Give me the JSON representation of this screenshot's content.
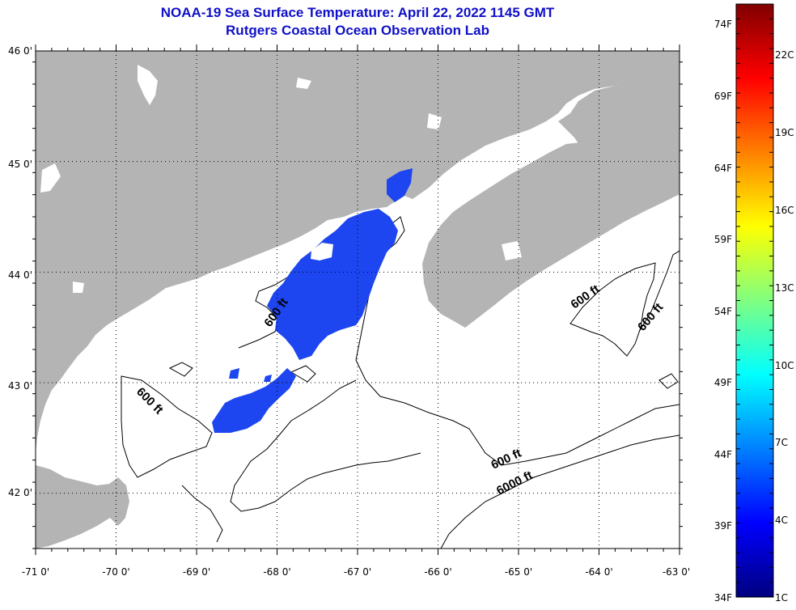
{
  "header": {
    "title": "NOAA-19 Sea Surface Temperature:  April 22, 2022 1145 GMT",
    "subtitle": "Rutgers Coastal Ocean Observation Lab"
  },
  "map": {
    "lon_range": [
      -71,
      -63
    ],
    "lat_range": [
      41.5,
      46
    ],
    "lon_ticks": [
      "-71 0'",
      "-70 0'",
      "-69 0'",
      "-68 0'",
      "-67 0'",
      "-66 0'",
      "-65 0'",
      "-64 0'",
      "-63 0'"
    ],
    "lat_ticks": [
      "46 0'",
      "45 0'",
      "44 0'",
      "43 0'",
      "42 0'"
    ],
    "grid": "dotted",
    "land_color": "#b4b4b4",
    "cloud_color": "#ffffff",
    "contour_labels": [
      "600 ft",
      "600 ft",
      "600 ft",
      "600 ft",
      "600 ft",
      "6000 ft"
    ],
    "sst_color": "#1e46f0"
  },
  "colorbar": {
    "fahrenheit_labels": [
      "74F",
      "69F",
      "64F",
      "59F",
      "54F",
      "49F",
      "44F",
      "39F",
      "34F"
    ],
    "celsius_labels": [
      "22C",
      "19C",
      "16C",
      "13C",
      "10C",
      "7C",
      "4C",
      "1C"
    ],
    "colors": [
      "#000080",
      "#0000ff",
      "#0080ff",
      "#00ffff",
      "#80ff80",
      "#ffff00",
      "#ff8000",
      "#ff0000",
      "#800000"
    ]
  }
}
